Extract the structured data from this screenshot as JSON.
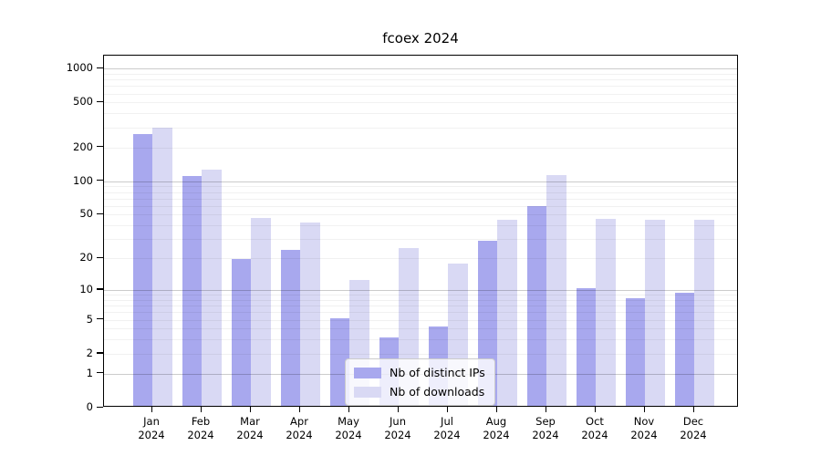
{
  "figure": {
    "title": "fcoex 2024"
  },
  "legend": {
    "items": [
      {
        "label": "Nb of distinct IPs"
      },
      {
        "label": "Nb of downloads"
      }
    ]
  },
  "chart_data": {
    "type": "bar",
    "title": "fcoex 2024",
    "categories": [
      "Jan 2024",
      "Feb 2024",
      "Mar 2024",
      "Apr 2024",
      "May 2024",
      "Jun 2024",
      "Jul 2024",
      "Aug 2024",
      "Sep 2024",
      "Oct 2024",
      "Nov 2024",
      "Dec 2024"
    ],
    "series": [
      {
        "name": "Nb of distinct IPs",
        "color": "#a8a8ee",
        "values": [
          252,
          107,
          19,
          23,
          5,
          3,
          4,
          28,
          58,
          10,
          8,
          9
        ]
      },
      {
        "name": "Nb of downloads",
        "color": "#d9d9f4",
        "values": [
          287,
          123,
          45,
          41,
          12,
          24,
          17,
          43,
          109,
          44,
          43,
          43
        ]
      }
    ],
    "xlabel": "",
    "ylabel": "",
    "y_scale": "log1p",
    "y_ticks": [
      0,
      1,
      2,
      5,
      10,
      20,
      50,
      100,
      200,
      500,
      1000
    ],
    "ylim": [
      0,
      1300
    ],
    "grid": true,
    "legend_position": "lower center"
  }
}
